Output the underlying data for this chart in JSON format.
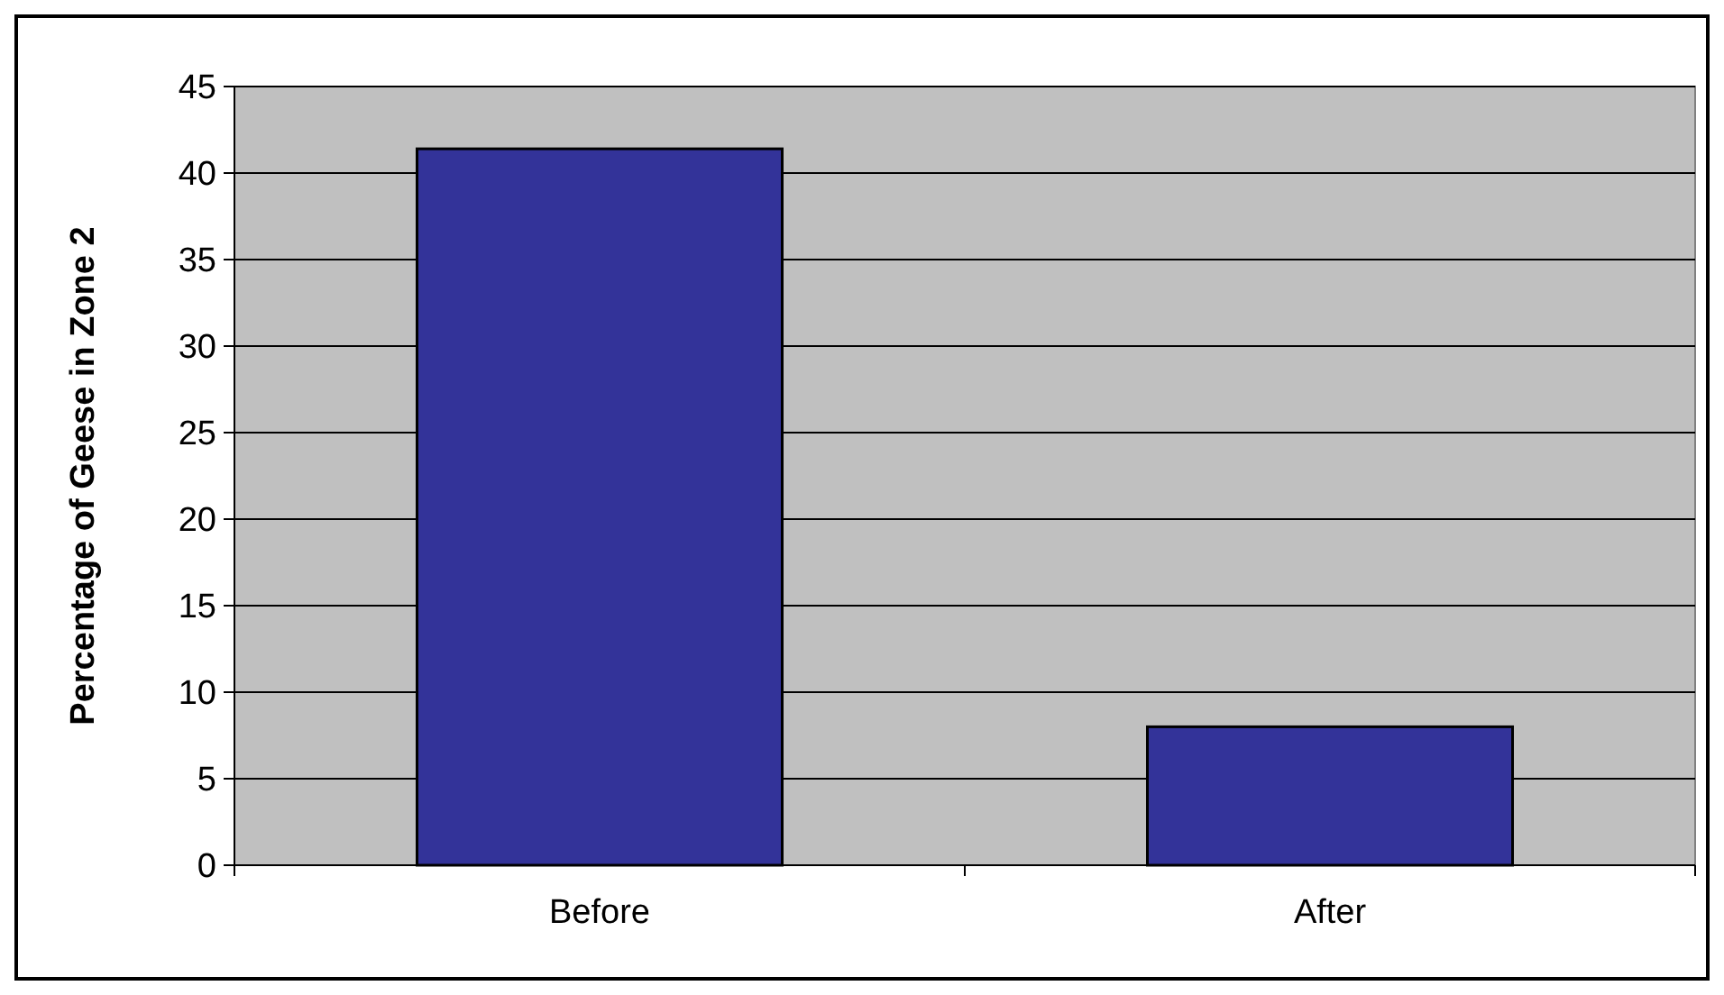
{
  "chart_data": {
    "type": "bar",
    "ylabel": "Percentage of Geese in Zone 2",
    "categories": [
      "Before",
      "After"
    ],
    "values": [
      41.4,
      8
    ],
    "color": "#333399",
    "ylim": [
      0,
      45
    ],
    "yticks": [
      0,
      5,
      10,
      15,
      20,
      25,
      30,
      35,
      40,
      45
    ],
    "grid": "y"
  }
}
